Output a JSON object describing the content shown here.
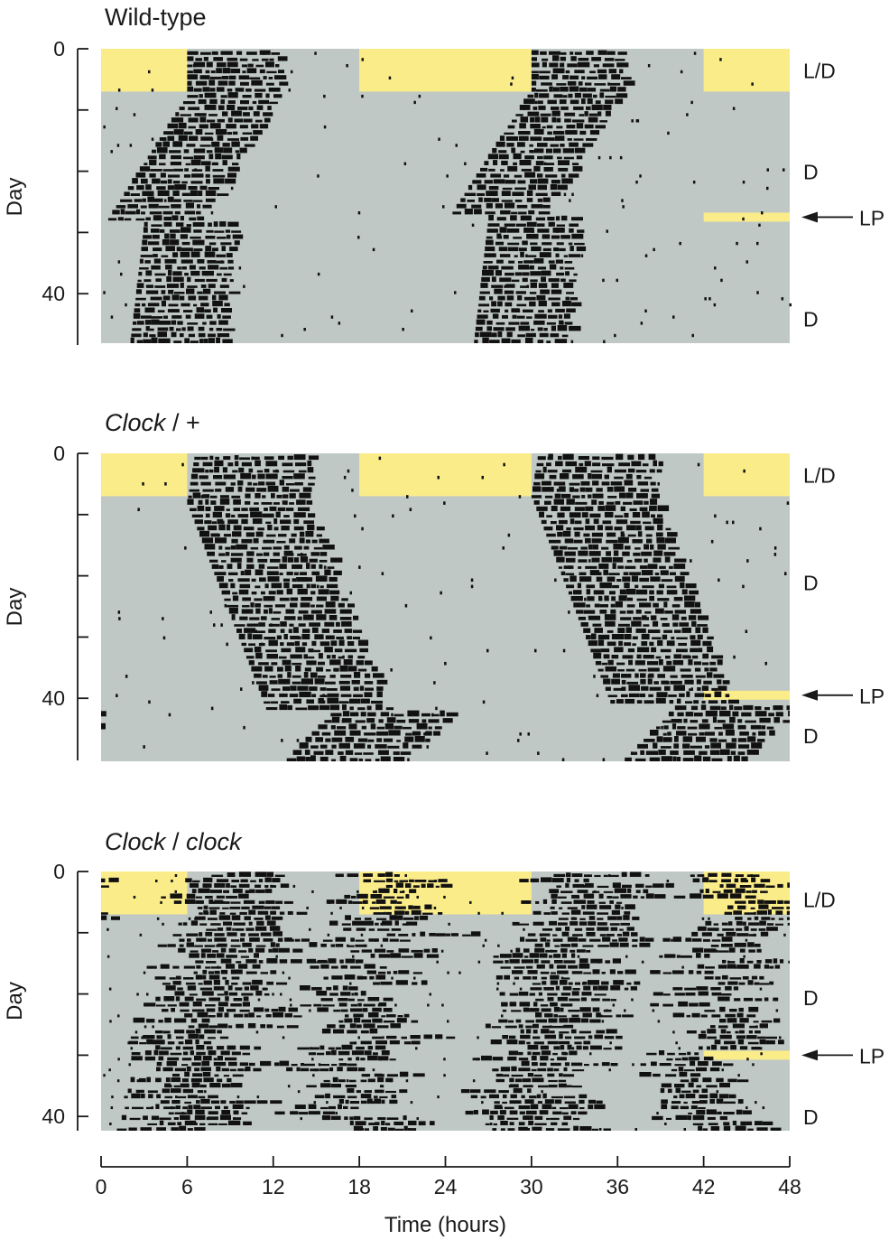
{
  "figure": {
    "x_axis": {
      "label": "Time (hours)",
      "ticks": [
        0,
        6,
        12,
        18,
        24,
        30,
        36,
        42,
        48
      ],
      "range": [
        0,
        48
      ]
    }
  },
  "colors": {
    "light": "#fbec8a",
    "dark_background": "#bfc8c5",
    "activity": "#111111",
    "axis": "#1a1a1a"
  },
  "chart_data": [
    {
      "type": "heatmap",
      "subtype": "double-plotted actogram",
      "title": "Wild-type",
      "title_italic": false,
      "title_parts": [],
      "xlabel": "Time (hours)",
      "ylabel": "Day",
      "xlim": [
        0,
        48
      ],
      "ylim": [
        0,
        48
      ],
      "y_ticks": [
        0,
        40
      ],
      "y_minor_ticks": [
        10,
        20,
        30
      ],
      "light_dark_schedule": {
        "light_hours": [
          [
            0,
            6
          ],
          [
            18,
            30
          ],
          [
            42,
            48
          ]
        ],
        "days": [
          0,
          7
        ]
      },
      "light_pulse": {
        "day": 27.5,
        "hours": [
          42,
          48
        ],
        "label": "LP"
      },
      "condition_labels": [
        {
          "text": "L/D",
          "day": 3.5
        },
        {
          "text": "D",
          "day": 20
        },
        {
          "text": "D",
          "day": 44
        }
      ],
      "activity_onset": [
        {
          "day": 0,
          "hour": 6
        },
        {
          "day": 7,
          "hour": 6
        },
        {
          "day": 27,
          "hour": 0.5
        },
        {
          "day": 28,
          "hour": 3.0
        },
        {
          "day": 48,
          "hour": 2.0
        }
      ],
      "activity_duration_hours": 6.5,
      "free_running_period_hours": 23.7
    },
    {
      "type": "heatmap",
      "subtype": "double-plotted actogram",
      "title": "Clock / +",
      "title_italic": true,
      "title_parts": [
        {
          "text": "Clock",
          "italic": true
        },
        {
          "text": " / +",
          "italic": false
        }
      ],
      "xlabel": "Time (hours)",
      "ylabel": "Day",
      "xlim": [
        0,
        48
      ],
      "ylim": [
        0,
        48
      ],
      "y_ticks": [
        0,
        40
      ],
      "y_minor_ticks": [
        10,
        20,
        30
      ],
      "light_dark_schedule": {
        "light_hours": [
          [
            0,
            6
          ],
          [
            18,
            30
          ],
          [
            42,
            48
          ]
        ],
        "days": [
          0,
          7
        ]
      },
      "light_pulse": {
        "day": 39.5,
        "hours": [
          42,
          48
        ],
        "label": "LP"
      },
      "condition_labels": [
        {
          "text": "L/D",
          "day": 3.5
        },
        {
          "text": "D",
          "day": 21
        },
        {
          "text": "D",
          "day": 46
        }
      ],
      "activity_onset": [
        {
          "day": 0,
          "hour": 6.5
        },
        {
          "day": 7,
          "hour": 6.0
        },
        {
          "day": 39,
          "hour": 11.5
        },
        {
          "day": 40,
          "hour": 16.0
        },
        {
          "day": 48,
          "hour": 12.5
        }
      ],
      "activity_duration_hours": 8.5,
      "free_running_period_hours": 24.8
    },
    {
      "type": "heatmap",
      "subtype": "double-plotted actogram",
      "title": "Clock / clock",
      "title_italic": true,
      "title_parts": [
        {
          "text": "Clock",
          "italic": true
        },
        {
          "text": " / ",
          "italic": false
        },
        {
          "text": "clock",
          "italic": true
        }
      ],
      "xlabel": "Time (hours)",
      "ylabel": "Day",
      "xlim": [
        0,
        48
      ],
      "ylim": [
        0,
        48
      ],
      "y_ticks": [
        0,
        40
      ],
      "y_minor_ticks": [
        10,
        20,
        30
      ],
      "light_dark_schedule": {
        "light_hours": [
          [
            0,
            6
          ],
          [
            18,
            30
          ],
          [
            42,
            48
          ]
        ],
        "days": [
          0,
          7
        ]
      },
      "light_pulse": {
        "day": 30,
        "hours": [
          42,
          48
        ],
        "label": "LP"
      },
      "condition_labels": [
        {
          "text": "L/D",
          "day": 4.5
        },
        {
          "text": "D",
          "day": 20.5
        },
        {
          "text": "D",
          "day": 40
        }
      ],
      "activity_onset": [
        {
          "day": 0,
          "hour": 6
        },
        {
          "day": 7,
          "hour": 6
        },
        {
          "day": 41,
          "hour": 3
        }
      ],
      "activity_duration_hours": 9,
      "note_visible": "",
      "arrhythmic": true
    }
  ]
}
